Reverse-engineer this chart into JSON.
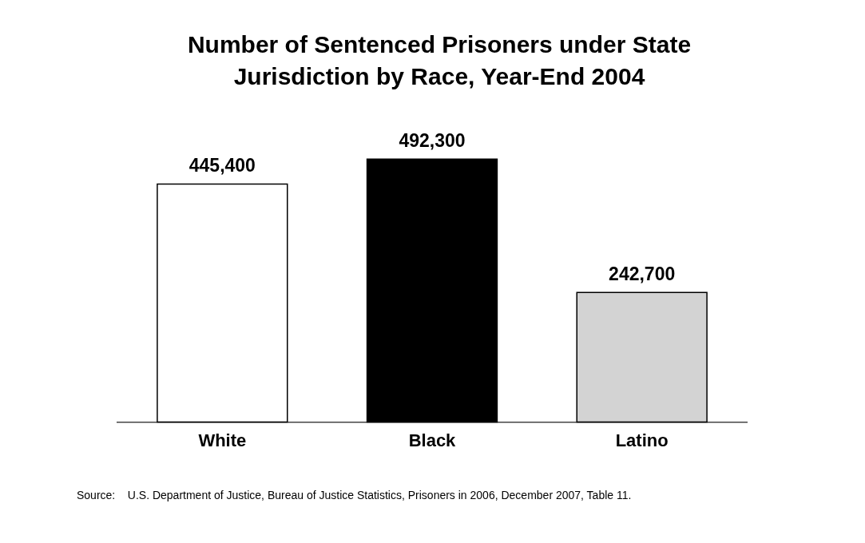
{
  "chart_data": {
    "type": "bar",
    "title": "Number of Sentenced Prisoners under State Jurisdiction by Race, Year-End 2004",
    "categories": [
      "White",
      "Black",
      "Latino"
    ],
    "values": [
      445400,
      492300,
      242700
    ],
    "colors": [
      "#ffffff",
      "#000000",
      "#d3d3d3"
    ],
    "value_labels": [
      "445,400",
      "492,300",
      "242,700"
    ],
    "annotations": [
      "Source:    U.S. Department of Justice, Bureau of Justice Statistics, Prisoners in 2006, December 2007, Table 11."
    ]
  }
}
